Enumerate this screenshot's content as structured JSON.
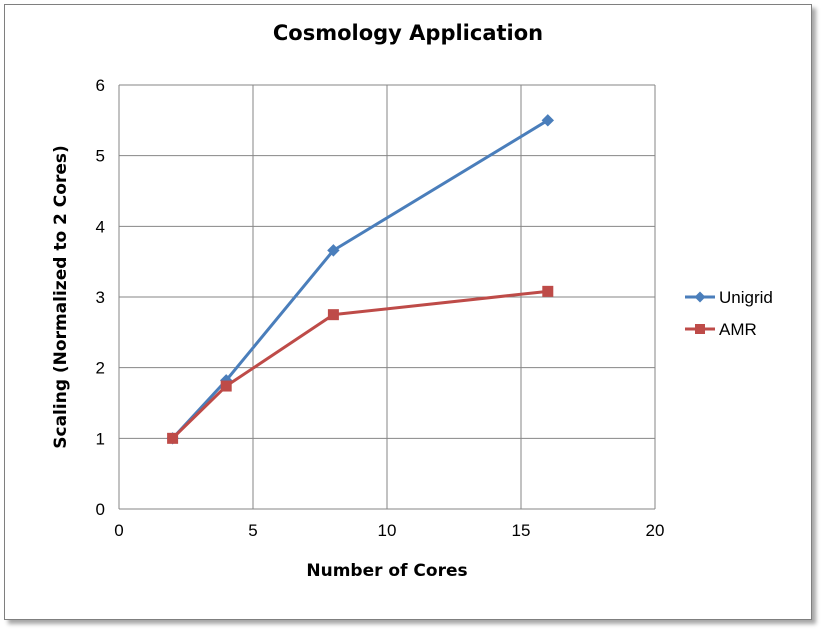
{
  "chart_data": {
    "type": "line",
    "title": "Cosmology Application",
    "xlabel": "Number of Cores",
    "ylabel": "Scaling (Normalized to 2 Cores)",
    "xlim": [
      0,
      20
    ],
    "ylim": [
      0,
      6
    ],
    "xticks": [
      0,
      5,
      10,
      15,
      20
    ],
    "yticks": [
      0,
      1,
      2,
      3,
      4,
      5,
      6
    ],
    "grid": true,
    "legend_position": "right",
    "series": [
      {
        "name": "Unigrid",
        "color": "#4a7ebb",
        "marker": "diamond",
        "x": [
          2,
          4,
          8,
          16
        ],
        "y": [
          1.0,
          1.82,
          3.66,
          5.5
        ]
      },
      {
        "name": "AMR",
        "color": "#be4b48",
        "marker": "square",
        "x": [
          2,
          4,
          8,
          16
        ],
        "y": [
          1.0,
          1.74,
          2.75,
          3.08
        ]
      }
    ]
  }
}
